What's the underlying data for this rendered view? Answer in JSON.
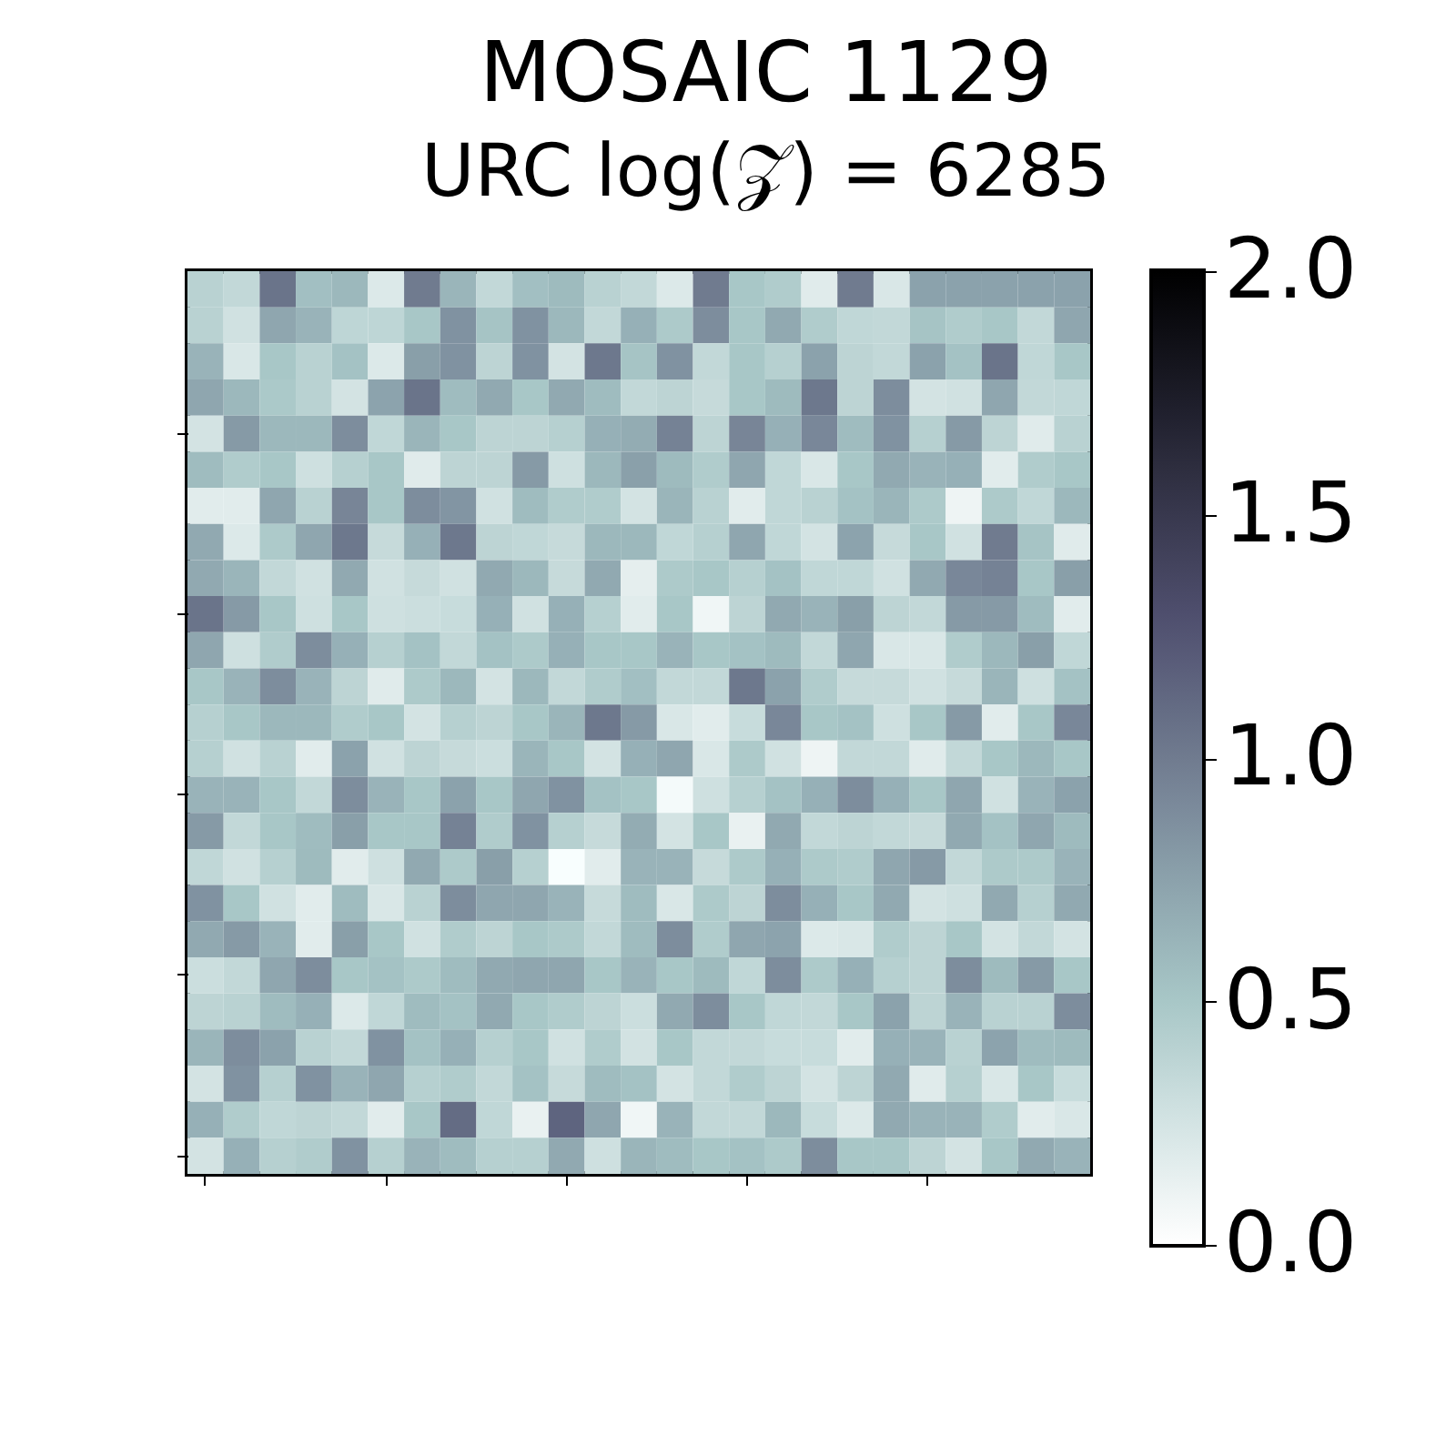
{
  "chart_data": {
    "type": "heatmap",
    "title": "MOSAIC 1129",
    "subtitle": "URC log(𝒵) = 6285",
    "categories": [
      null,
      null,
      null,
      null,
      null,
      null,
      null,
      null,
      null,
      null,
      null,
      null,
      null,
      null,
      null,
      null,
      null,
      null,
      null,
      null,
      null,
      null,
      null,
      null,
      null
    ],
    "y_categories": [
      null,
      null,
      null,
      null,
      null,
      null,
      null,
      null,
      null,
      null,
      null,
      null,
      null,
      null,
      null,
      null,
      null,
      null,
      null,
      null,
      null,
      null,
      null,
      null,
      null
    ],
    "clim": [
      0,
      2
    ],
    "cticks": [
      {
        "value": 0,
        "label": "0.0"
      },
      0.5,
      {
        "value": 1,
        "label": "1.0"
      },
      1.5,
      {
        "value": 2,
        "label": "2.0"
      }
    ],
    "cells": [
      [
        0.4,
        0.35,
        1.05,
        0.55,
        0.6,
        0.2,
        1.0,
        0.62,
        0.35,
        0.55,
        0.58,
        0.4,
        0.35,
        0.2,
        1.0,
        0.5,
        0.45,
        0.18,
        1.0,
        0.22,
        0.75,
        0.75,
        0.75,
        0.75,
        0.75
      ],
      [
        0.4,
        0.27,
        0.72,
        0.63,
        0.37,
        0.37,
        0.5,
        0.85,
        0.52,
        0.85,
        0.6,
        0.35,
        0.65,
        0.47,
        0.88,
        0.5,
        0.7,
        0.45,
        0.36,
        0.35,
        0.52,
        0.45,
        0.5,
        0.35,
        0.72
      ],
      [
        0.63,
        0.22,
        0.5,
        0.4,
        0.53,
        0.2,
        0.77,
        0.85,
        0.38,
        0.85,
        0.25,
        1.02,
        0.52,
        0.85,
        0.35,
        0.5,
        0.42,
        0.75,
        0.38,
        0.35,
        0.75,
        0.53,
        1.05,
        0.36,
        0.5
      ],
      [
        0.72,
        0.6,
        0.48,
        0.4,
        0.25,
        0.74,
        1.05,
        0.57,
        0.7,
        0.5,
        0.7,
        0.57,
        0.35,
        0.38,
        0.33,
        0.5,
        0.58,
        1.02,
        0.38,
        0.88,
        0.25,
        0.27,
        0.72,
        0.35,
        0.36
      ],
      [
        0.25,
        0.8,
        0.6,
        0.6,
        0.88,
        0.36,
        0.62,
        0.5,
        0.38,
        0.38,
        0.42,
        0.65,
        0.68,
        0.95,
        0.38,
        0.93,
        0.65,
        0.92,
        0.57,
        0.85,
        0.42,
        0.8,
        0.38,
        0.18,
        0.4
      ],
      [
        0.57,
        0.45,
        0.5,
        0.28,
        0.42,
        0.5,
        0.18,
        0.38,
        0.38,
        0.8,
        0.28,
        0.6,
        0.76,
        0.58,
        0.45,
        0.72,
        0.36,
        0.22,
        0.5,
        0.7,
        0.63,
        0.65,
        0.17,
        0.45,
        0.5
      ],
      [
        0.17,
        0.17,
        0.72,
        0.4,
        0.93,
        0.5,
        0.88,
        0.83,
        0.27,
        0.57,
        0.45,
        0.45,
        0.25,
        0.62,
        0.4,
        0.17,
        0.36,
        0.4,
        0.53,
        0.62,
        0.47,
        0.1,
        0.47,
        0.36,
        0.6
      ],
      [
        0.7,
        0.2,
        0.47,
        0.72,
        1.02,
        0.33,
        0.65,
        1.02,
        0.38,
        0.36,
        0.33,
        0.6,
        0.6,
        0.36,
        0.42,
        0.72,
        0.36,
        0.25,
        0.74,
        0.33,
        0.5,
        0.27,
        1.0,
        0.52,
        0.18
      ],
      [
        0.7,
        0.62,
        0.35,
        0.27,
        0.7,
        0.27,
        0.33,
        0.27,
        0.7,
        0.6,
        0.33,
        0.7,
        0.15,
        0.47,
        0.5,
        0.42,
        0.53,
        0.36,
        0.36,
        0.27,
        0.7,
        0.92,
        0.95,
        0.5,
        0.77
      ],
      [
        1.05,
        0.8,
        0.5,
        0.28,
        0.5,
        0.28,
        0.3,
        0.32,
        0.65,
        0.27,
        0.65,
        0.42,
        0.17,
        0.5,
        0.08,
        0.38,
        0.7,
        0.63,
        0.77,
        0.38,
        0.35,
        0.8,
        0.8,
        0.57,
        0.17
      ],
      [
        0.72,
        0.28,
        0.45,
        0.88,
        0.65,
        0.42,
        0.53,
        0.35,
        0.53,
        0.47,
        0.65,
        0.5,
        0.5,
        0.63,
        0.5,
        0.53,
        0.58,
        0.35,
        0.72,
        0.22,
        0.22,
        0.45,
        0.6,
        0.77,
        0.36
      ],
      [
        0.5,
        0.63,
        0.88,
        0.63,
        0.38,
        0.18,
        0.47,
        0.6,
        0.25,
        0.6,
        0.35,
        0.45,
        0.55,
        0.35,
        0.35,
        1.02,
        0.75,
        0.45,
        0.33,
        0.33,
        0.27,
        0.33,
        0.62,
        0.28,
        0.53
      ],
      [
        0.42,
        0.5,
        0.6,
        0.6,
        0.45,
        0.5,
        0.25,
        0.42,
        0.38,
        0.5,
        0.62,
        1.02,
        0.8,
        0.22,
        0.17,
        0.32,
        0.92,
        0.5,
        0.53,
        0.28,
        0.5,
        0.8,
        0.17,
        0.5,
        0.92
      ],
      [
        0.42,
        0.27,
        0.4,
        0.17,
        0.75,
        0.27,
        0.38,
        0.33,
        0.3,
        0.62,
        0.5,
        0.25,
        0.65,
        0.72,
        0.22,
        0.47,
        0.27,
        0.1,
        0.35,
        0.35,
        0.18,
        0.35,
        0.5,
        0.6,
        0.5
      ],
      [
        0.63,
        0.63,
        0.5,
        0.35,
        0.88,
        0.63,
        0.5,
        0.75,
        0.5,
        0.72,
        0.85,
        0.53,
        0.5,
        0.05,
        0.28,
        0.42,
        0.53,
        0.65,
        0.88,
        0.65,
        0.5,
        0.72,
        0.27,
        0.63,
        0.75
      ],
      [
        0.8,
        0.35,
        0.5,
        0.57,
        0.77,
        0.5,
        0.5,
        0.95,
        0.45,
        0.85,
        0.42,
        0.33,
        0.68,
        0.25,
        0.5,
        0.13,
        0.7,
        0.35,
        0.38,
        0.35,
        0.33,
        0.7,
        0.53,
        0.72,
        0.58
      ],
      [
        0.36,
        0.27,
        0.42,
        0.58,
        0.17,
        0.28,
        0.7,
        0.47,
        0.77,
        0.42,
        0.02,
        0.17,
        0.63,
        0.63,
        0.33,
        0.47,
        0.65,
        0.47,
        0.45,
        0.72,
        0.8,
        0.35,
        0.47,
        0.47,
        0.63
      ],
      [
        0.85,
        0.5,
        0.27,
        0.17,
        0.57,
        0.22,
        0.4,
        0.88,
        0.72,
        0.72,
        0.63,
        0.33,
        0.57,
        0.22,
        0.47,
        0.38,
        0.88,
        0.65,
        0.5,
        0.7,
        0.25,
        0.28,
        0.7,
        0.42,
        0.7
      ],
      [
        0.7,
        0.8,
        0.63,
        0.17,
        0.77,
        0.5,
        0.27,
        0.45,
        0.38,
        0.5,
        0.47,
        0.35,
        0.57,
        0.88,
        0.45,
        0.72,
        0.74,
        0.2,
        0.22,
        0.45,
        0.38,
        0.5,
        0.25,
        0.35,
        0.25
      ],
      [
        0.3,
        0.35,
        0.72,
        0.88,
        0.5,
        0.53,
        0.47,
        0.57,
        0.7,
        0.72,
        0.72,
        0.5,
        0.63,
        0.5,
        0.58,
        0.36,
        0.88,
        0.47,
        0.65,
        0.42,
        0.38,
        0.88,
        0.58,
        0.8,
        0.5
      ],
      [
        0.38,
        0.4,
        0.57,
        0.65,
        0.2,
        0.36,
        0.57,
        0.53,
        0.7,
        0.5,
        0.45,
        0.38,
        0.3,
        0.7,
        0.88,
        0.5,
        0.36,
        0.35,
        0.5,
        0.75,
        0.38,
        0.63,
        0.4,
        0.4,
        0.88
      ],
      [
        0.62,
        0.88,
        0.75,
        0.4,
        0.35,
        0.85,
        0.53,
        0.65,
        0.42,
        0.5,
        0.27,
        0.45,
        0.26,
        0.5,
        0.35,
        0.35,
        0.32,
        0.32,
        0.17,
        0.65,
        0.63,
        0.4,
        0.74,
        0.57,
        0.58
      ],
      [
        0.25,
        0.85,
        0.42,
        0.85,
        0.63,
        0.72,
        0.42,
        0.45,
        0.35,
        0.53,
        0.33,
        0.57,
        0.53,
        0.25,
        0.35,
        0.45,
        0.38,
        0.25,
        0.38,
        0.7,
        0.18,
        0.42,
        0.22,
        0.5,
        0.32
      ],
      [
        0.65,
        0.45,
        0.36,
        0.38,
        0.35,
        0.17,
        0.5,
        1.1,
        0.36,
        0.13,
        1.15,
        0.72,
        0.08,
        0.63,
        0.35,
        0.35,
        0.6,
        0.32,
        0.2,
        0.7,
        0.63,
        0.63,
        0.45,
        0.17,
        0.22
      ],
      [
        0.25,
        0.65,
        0.42,
        0.45,
        0.85,
        0.42,
        0.63,
        0.57,
        0.42,
        0.42,
        0.7,
        0.28,
        0.62,
        0.57,
        0.5,
        0.53,
        0.47,
        0.88,
        0.5,
        0.5,
        0.38,
        0.25,
        0.5,
        0.7,
        0.63
      ]
    ]
  }
}
